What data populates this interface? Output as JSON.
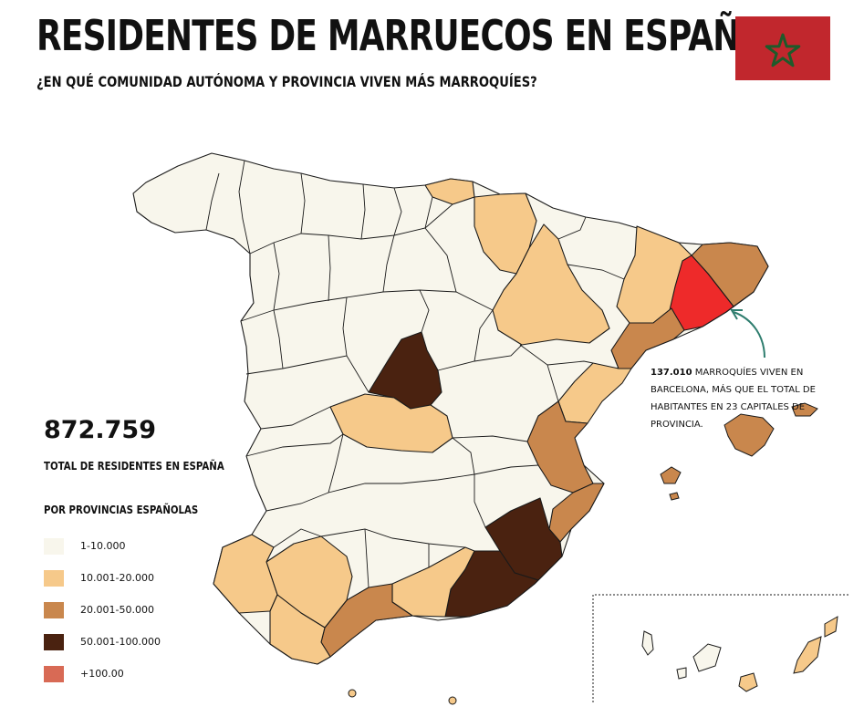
{
  "title": "RESIDENTES DE MARRUECOS EN ESPAÑA",
  "subtitle": "¿EN QUÉ COMUNIDAD AUTÓNOMA Y PROVINCIA VIVEN MÁS MARROQUÍES?",
  "total": {
    "value": "872.759",
    "label": "TOTAL DE RESIDENTES EN ESPAÑA"
  },
  "legend": {
    "title": "POR PROVINCIAS ESPAÑOLAS",
    "items": [
      {
        "label": "1-10.000",
        "color": "#f8f6ec"
      },
      {
        "label": "10.001-20.000",
        "color": "#f6c98a"
      },
      {
        "label": "20.001-50.000",
        "color": "#c9874d"
      },
      {
        "label": "50.001-100.000",
        "color": "#4a2210"
      },
      {
        "label": "+100.00",
        "color": "#d86a55"
      }
    ]
  },
  "annotation": {
    "highlight": "137.010",
    "text": " MARROQUÍES VIVEN EN BARCELONA, MÁS QUE EL TOTAL DE HABITANTES EN 23 CAPITALES DE PROVINCIA."
  },
  "colors": {
    "red_highlight": "#ee2a2a",
    "arrow": "#2e7d6e",
    "flag_red": "#c1272d",
    "flag_star": "#006233"
  }
}
